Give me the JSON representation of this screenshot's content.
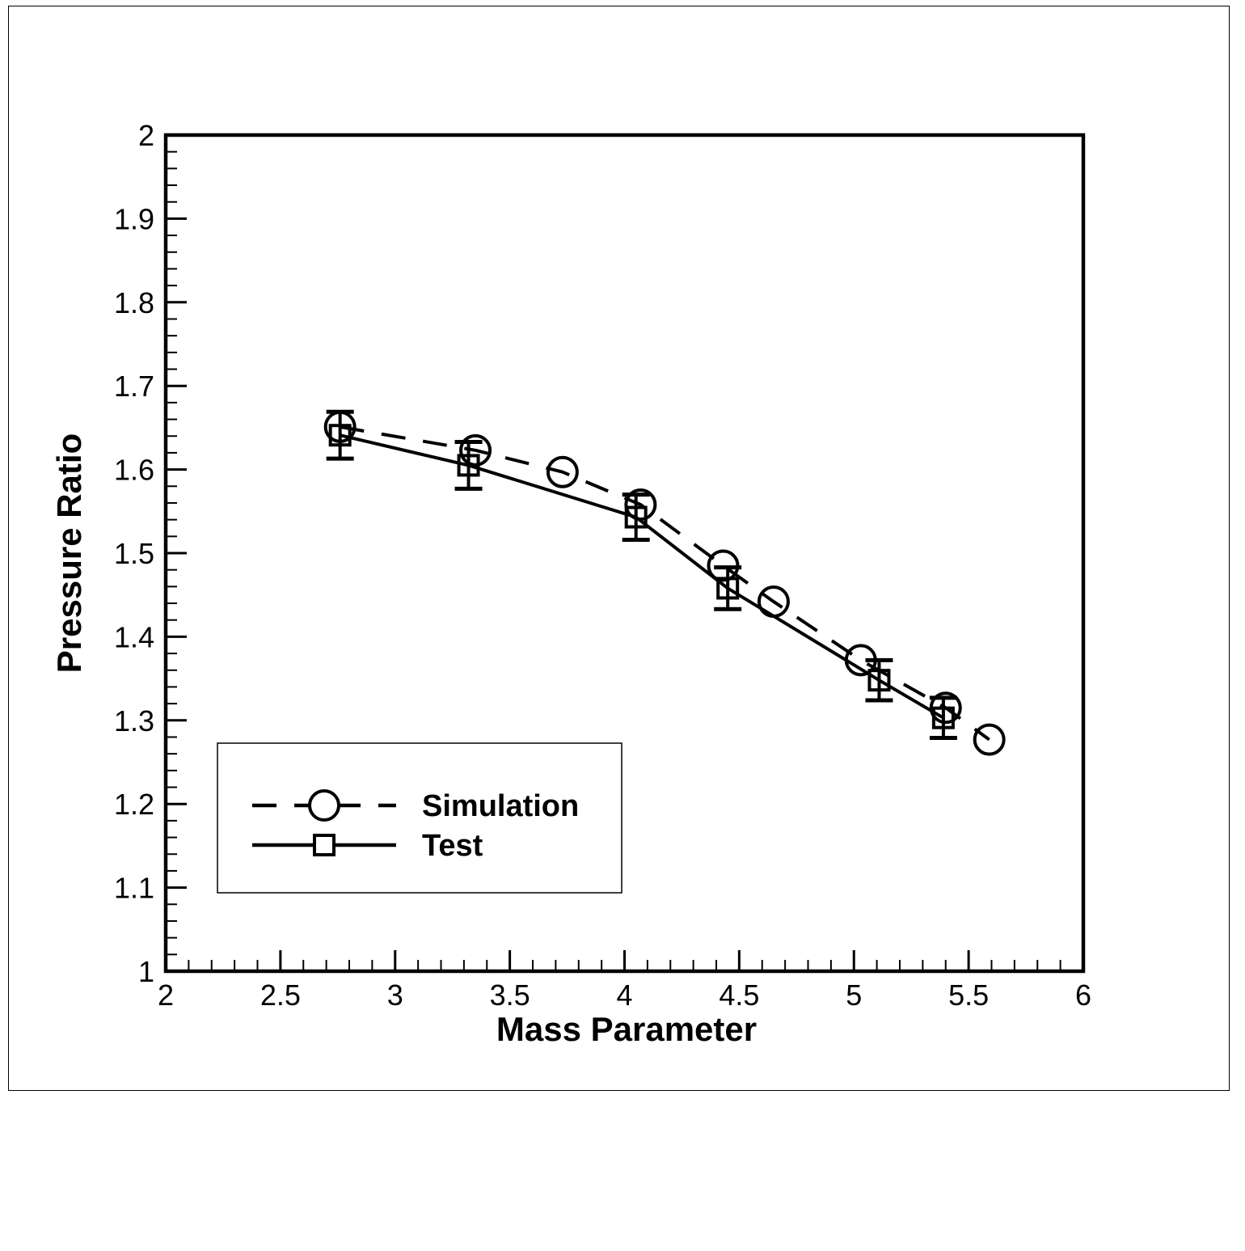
{
  "chart_data": {
    "type": "line",
    "title": "",
    "xlabel": "Mass Parameter",
    "ylabel": "Pressure Ratio",
    "xlim": [
      2,
      6
    ],
    "ylim": [
      1,
      2
    ],
    "x_ticks": [
      "2",
      "2.5",
      "3",
      "3.5",
      "4",
      "4.5",
      "5",
      "5.5",
      "6"
    ],
    "y_ticks": [
      "1",
      "1.1",
      "1.2",
      "1.3",
      "1.4",
      "1.5",
      "1.6",
      "1.7",
      "1.8",
      "1.9",
      "2"
    ],
    "grid": false,
    "legend_position": "bottom-left",
    "series": [
      {
        "name": "Simulation",
        "line_style": "dashed",
        "marker": "circle",
        "x": [
          2.76,
          3.35,
          3.73,
          4.07,
          4.43,
          4.65,
          5.03,
          5.4,
          5.59
        ],
        "y": [
          1.651,
          1.623,
          1.597,
          1.558,
          1.485,
          1.442,
          1.372,
          1.315,
          1.277
        ]
      },
      {
        "name": "Test",
        "line_style": "solid",
        "marker": "square",
        "x": [
          2.76,
          3.32,
          4.05,
          4.45,
          5.11,
          5.39
        ],
        "y": [
          1.641,
          1.605,
          1.543,
          1.458,
          1.348,
          1.303
        ],
        "error": [
          0.028,
          0.028,
          0.027,
          0.025,
          0.024,
          0.024
        ]
      }
    ],
    "colors": {
      "line": "#000000",
      "background": "#ffffff"
    }
  }
}
